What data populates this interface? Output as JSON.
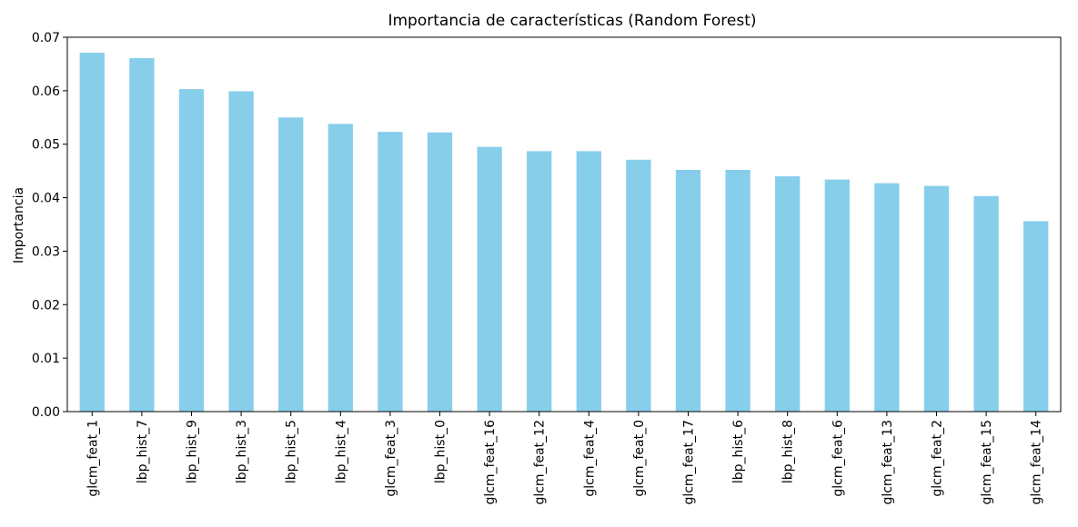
{
  "chart_data": {
    "type": "bar",
    "title": "Importancia de características (Random Forest)",
    "xlabel": "",
    "ylabel": "Importancia",
    "ylim": [
      0,
      0.07
    ],
    "yticks": [
      "0.00",
      "0.01",
      "0.02",
      "0.03",
      "0.04",
      "0.05",
      "0.06",
      "0.07"
    ],
    "grid": false,
    "bar_color": "#87ceeb",
    "categories": [
      "glcm_feat_1",
      "lbp_hist_7",
      "lbp_hist_9",
      "lbp_hist_3",
      "lbp_hist_5",
      "lbp_hist_4",
      "glcm_feat_3",
      "lbp_hist_0",
      "glcm_feat_16",
      "glcm_feat_12",
      "glcm_feat_4",
      "glcm_feat_0",
      "glcm_feat_17",
      "lbp_hist_6",
      "lbp_hist_8",
      "glcm_feat_6",
      "glcm_feat_13",
      "glcm_feat_2",
      "glcm_feat_15",
      "glcm_feat_14"
    ],
    "values": [
      0.0671,
      0.0661,
      0.0603,
      0.0599,
      0.055,
      0.0538,
      0.0523,
      0.0522,
      0.0495,
      0.0487,
      0.0487,
      0.0471,
      0.0452,
      0.0452,
      0.044,
      0.0434,
      0.0427,
      0.0422,
      0.0403,
      0.0356
    ]
  }
}
